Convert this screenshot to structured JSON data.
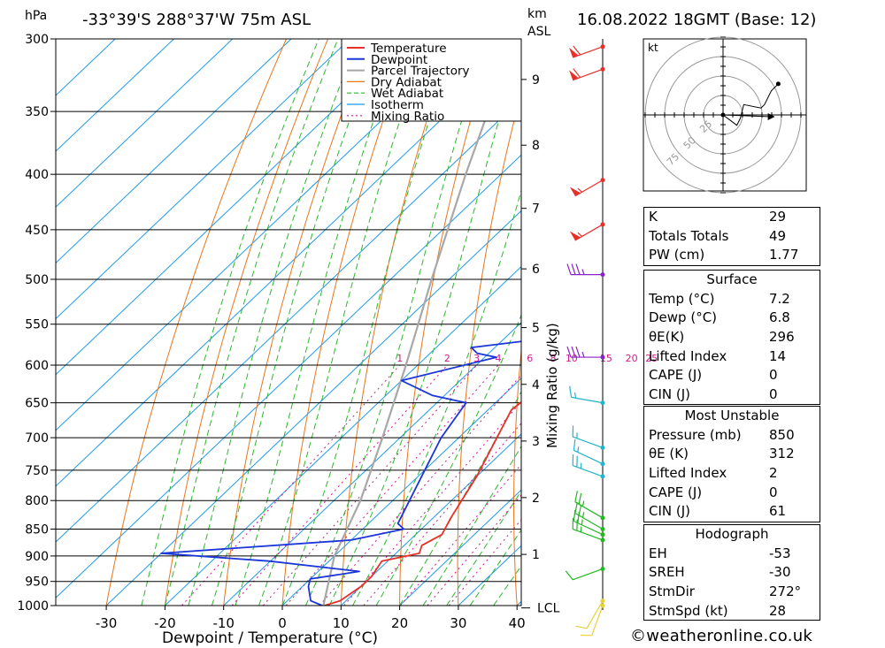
{
  "header": {
    "location": "-33°39'S 288°37'W 75m ASL",
    "datetime": "16.08.2022 18GMT (Base: 12)",
    "unit_left": "hPa",
    "unit_right_1": "km",
    "unit_right_2": "ASL"
  },
  "chart_data": {
    "type": "line",
    "subtype": "skew-T log-P sounding",
    "xlabel": "Dewpoint / Temperature (°C)",
    "ylabel_right": "Mixing Ratio (g/kg)",
    "x_ticks": [
      "-30",
      "-20",
      "-10",
      "0",
      "10",
      "20",
      "30",
      "40"
    ],
    "pressure_ticks": [
      "300",
      "350",
      "400",
      "450",
      "500",
      "550",
      "600",
      "650",
      "700",
      "750",
      "800",
      "850",
      "900",
      "950",
      "1000"
    ],
    "height_ticks": [
      {
        "km": "1",
        "p": 897
      },
      {
        "km": "2",
        "p": 795
      },
      {
        "km": "3",
        "p": 705
      },
      {
        "km": "4",
        "p": 625
      },
      {
        "km": "5",
        "p": 554
      },
      {
        "km": "6",
        "p": 489
      },
      {
        "km": "7",
        "p": 430
      },
      {
        "km": "8",
        "p": 376
      },
      {
        "km": "9",
        "p": 327
      }
    ],
    "lcl_label": "LCL",
    "lcl_pressure": 1005,
    "mixing_ratio_labels": [
      "1",
      "2",
      "3",
      "4",
      "6",
      "8",
      "10",
      "15",
      "20",
      "25"
    ],
    "legend": [
      "Temperature",
      "Dewpoint",
      "Parcel Trajectory",
      "Dry Adiabat",
      "Wet Adiabat",
      "Isotherm",
      "Mixing Ratio"
    ],
    "colors": {
      "temperature": "#e8302a",
      "dewpoint": "#1a35d8",
      "parcel": "#a8a8a8",
      "dry_adiabat": "#e8761a",
      "wet_adiabat": "#2cb82c",
      "isotherm": "#1e9be8",
      "mixing_ratio": "#cc1a8c"
    },
    "temperature": [
      [
        1000,
        7.2
      ],
      [
        990,
        9
      ],
      [
        960,
        10
      ],
      [
        940,
        10
      ],
      [
        910,
        9
      ],
      [
        895,
        14
      ],
      [
        880,
        13
      ],
      [
        860,
        14.5
      ],
      [
        830,
        13
      ],
      [
        760,
        10
      ],
      [
        700,
        6.5
      ],
      [
        660,
        4
      ],
      [
        640,
        4.5
      ],
      [
        610,
        5
      ],
      [
        580,
        5
      ],
      [
        540,
        3
      ],
      [
        500,
        0
      ],
      [
        478,
        -2
      ],
      [
        460,
        -4
      ],
      [
        430,
        -8
      ],
      [
        400,
        -14
      ],
      [
        350,
        -25
      ],
      [
        300,
        -38
      ]
    ],
    "dewpoint": [
      [
        1000,
        6.8
      ],
      [
        990,
        4
      ],
      [
        960,
        1
      ],
      [
        945,
        0
      ],
      [
        930,
        7
      ],
      [
        910,
        -10
      ],
      [
        895,
        -30
      ],
      [
        870,
        0
      ],
      [
        850,
        7
      ],
      [
        840,
        5
      ],
      [
        700,
        -3
      ],
      [
        650,
        -5
      ],
      [
        640,
        -12
      ],
      [
        620,
        -20
      ],
      [
        590,
        -8
      ],
      [
        585,
        -12
      ],
      [
        578,
        -14
      ],
      [
        570,
        -6
      ],
      [
        560,
        -4
      ],
      [
        500,
        -14
      ],
      [
        480,
        -19
      ],
      [
        460,
        -19
      ],
      [
        440,
        -22
      ],
      [
        420,
        -24
      ],
      [
        330,
        -50
      ],
      [
        310,
        -47
      ],
      [
        300,
        -49
      ]
    ],
    "parcel": [
      [
        1000,
        7
      ],
      [
        900,
        0
      ],
      [
        800,
        -5.5
      ],
      [
        700,
        -13
      ],
      [
        600,
        -22
      ],
      [
        500,
        -33
      ],
      [
        400,
        -46
      ],
      [
        300,
        -62
      ]
    ],
    "wind_barbs": [
      {
        "p": 1000,
        "dir": 200,
        "spd": 10
      },
      {
        "p": 990,
        "dir": 210,
        "spd": 10
      },
      {
        "p": 925,
        "dir": 250,
        "spd": 10
      },
      {
        "p": 870,
        "dir": 290,
        "spd": 25
      },
      {
        "p": 860,
        "dir": 295,
        "spd": 25
      },
      {
        "p": 850,
        "dir": 300,
        "spd": 25
      },
      {
        "p": 830,
        "dir": 300,
        "spd": 25
      },
      {
        "p": 760,
        "dir": 290,
        "spd": 25
      },
      {
        "p": 740,
        "dir": 295,
        "spd": 15
      },
      {
        "p": 715,
        "dir": 290,
        "spd": 15
      },
      {
        "p": 650,
        "dir": 280,
        "spd": 15
      },
      {
        "p": 590,
        "dir": 270,
        "spd": 35
      },
      {
        "p": 495,
        "dir": 270,
        "spd": 35
      },
      {
        "p": 445,
        "dir": 240,
        "spd": 55
      },
      {
        "p": 405,
        "dir": 240,
        "spd": 55
      },
      {
        "p": 320,
        "dir": 250,
        "spd": 60
      },
      {
        "p": 305,
        "dir": 250,
        "spd": 60
      }
    ],
    "hodograph": {
      "unit": "kt",
      "ring_labels": [
        "25",
        "50",
        "75"
      ],
      "points": [
        [
          0,
          0
        ],
        [
          4,
          -3
        ],
        [
          8,
          -6
        ],
        [
          10,
          -2
        ],
        [
          12,
          6
        ],
        [
          22,
          4
        ],
        [
          24,
          6
        ],
        [
          28,
          14
        ],
        [
          32,
          18
        ]
      ],
      "storm_motion": [
        28,
        -1
      ]
    }
  },
  "indices_table": {
    "basic": [
      {
        "label": "K",
        "value": "29"
      },
      {
        "label": "Totals Totals",
        "value": "49"
      },
      {
        "label": "PW (cm)",
        "value": "1.77"
      }
    ],
    "surface_title": "Surface",
    "surface": [
      {
        "label": "Temp (°C)",
        "value": "7.2"
      },
      {
        "label": "Dewp (°C)",
        "value": "6.8"
      },
      {
        "label": "θE(K)",
        "value": "296"
      },
      {
        "label": "Lifted Index",
        "value": "14"
      },
      {
        "label": "CAPE (J)",
        "value": "0"
      },
      {
        "label": "CIN (J)",
        "value": "0"
      }
    ],
    "mu_title": "Most Unstable",
    "mu": [
      {
        "label": "Pressure (mb)",
        "value": "850"
      },
      {
        "label": "θE (K)",
        "value": "312"
      },
      {
        "label": "Lifted Index",
        "value": "2"
      },
      {
        "label": "CAPE (J)",
        "value": "0"
      },
      {
        "label": "CIN (J)",
        "value": "61"
      }
    ],
    "hodo_title": "Hodograph",
    "hodo": [
      {
        "label": "EH",
        "value": "-53"
      },
      {
        "label": "SREH",
        "value": "-30"
      },
      {
        "label": "StmDir",
        "value": "272°"
      },
      {
        "label": "StmSpd (kt)",
        "value": "28"
      }
    ]
  },
  "footer": {
    "copyright": "©weatheronline.co.uk"
  }
}
